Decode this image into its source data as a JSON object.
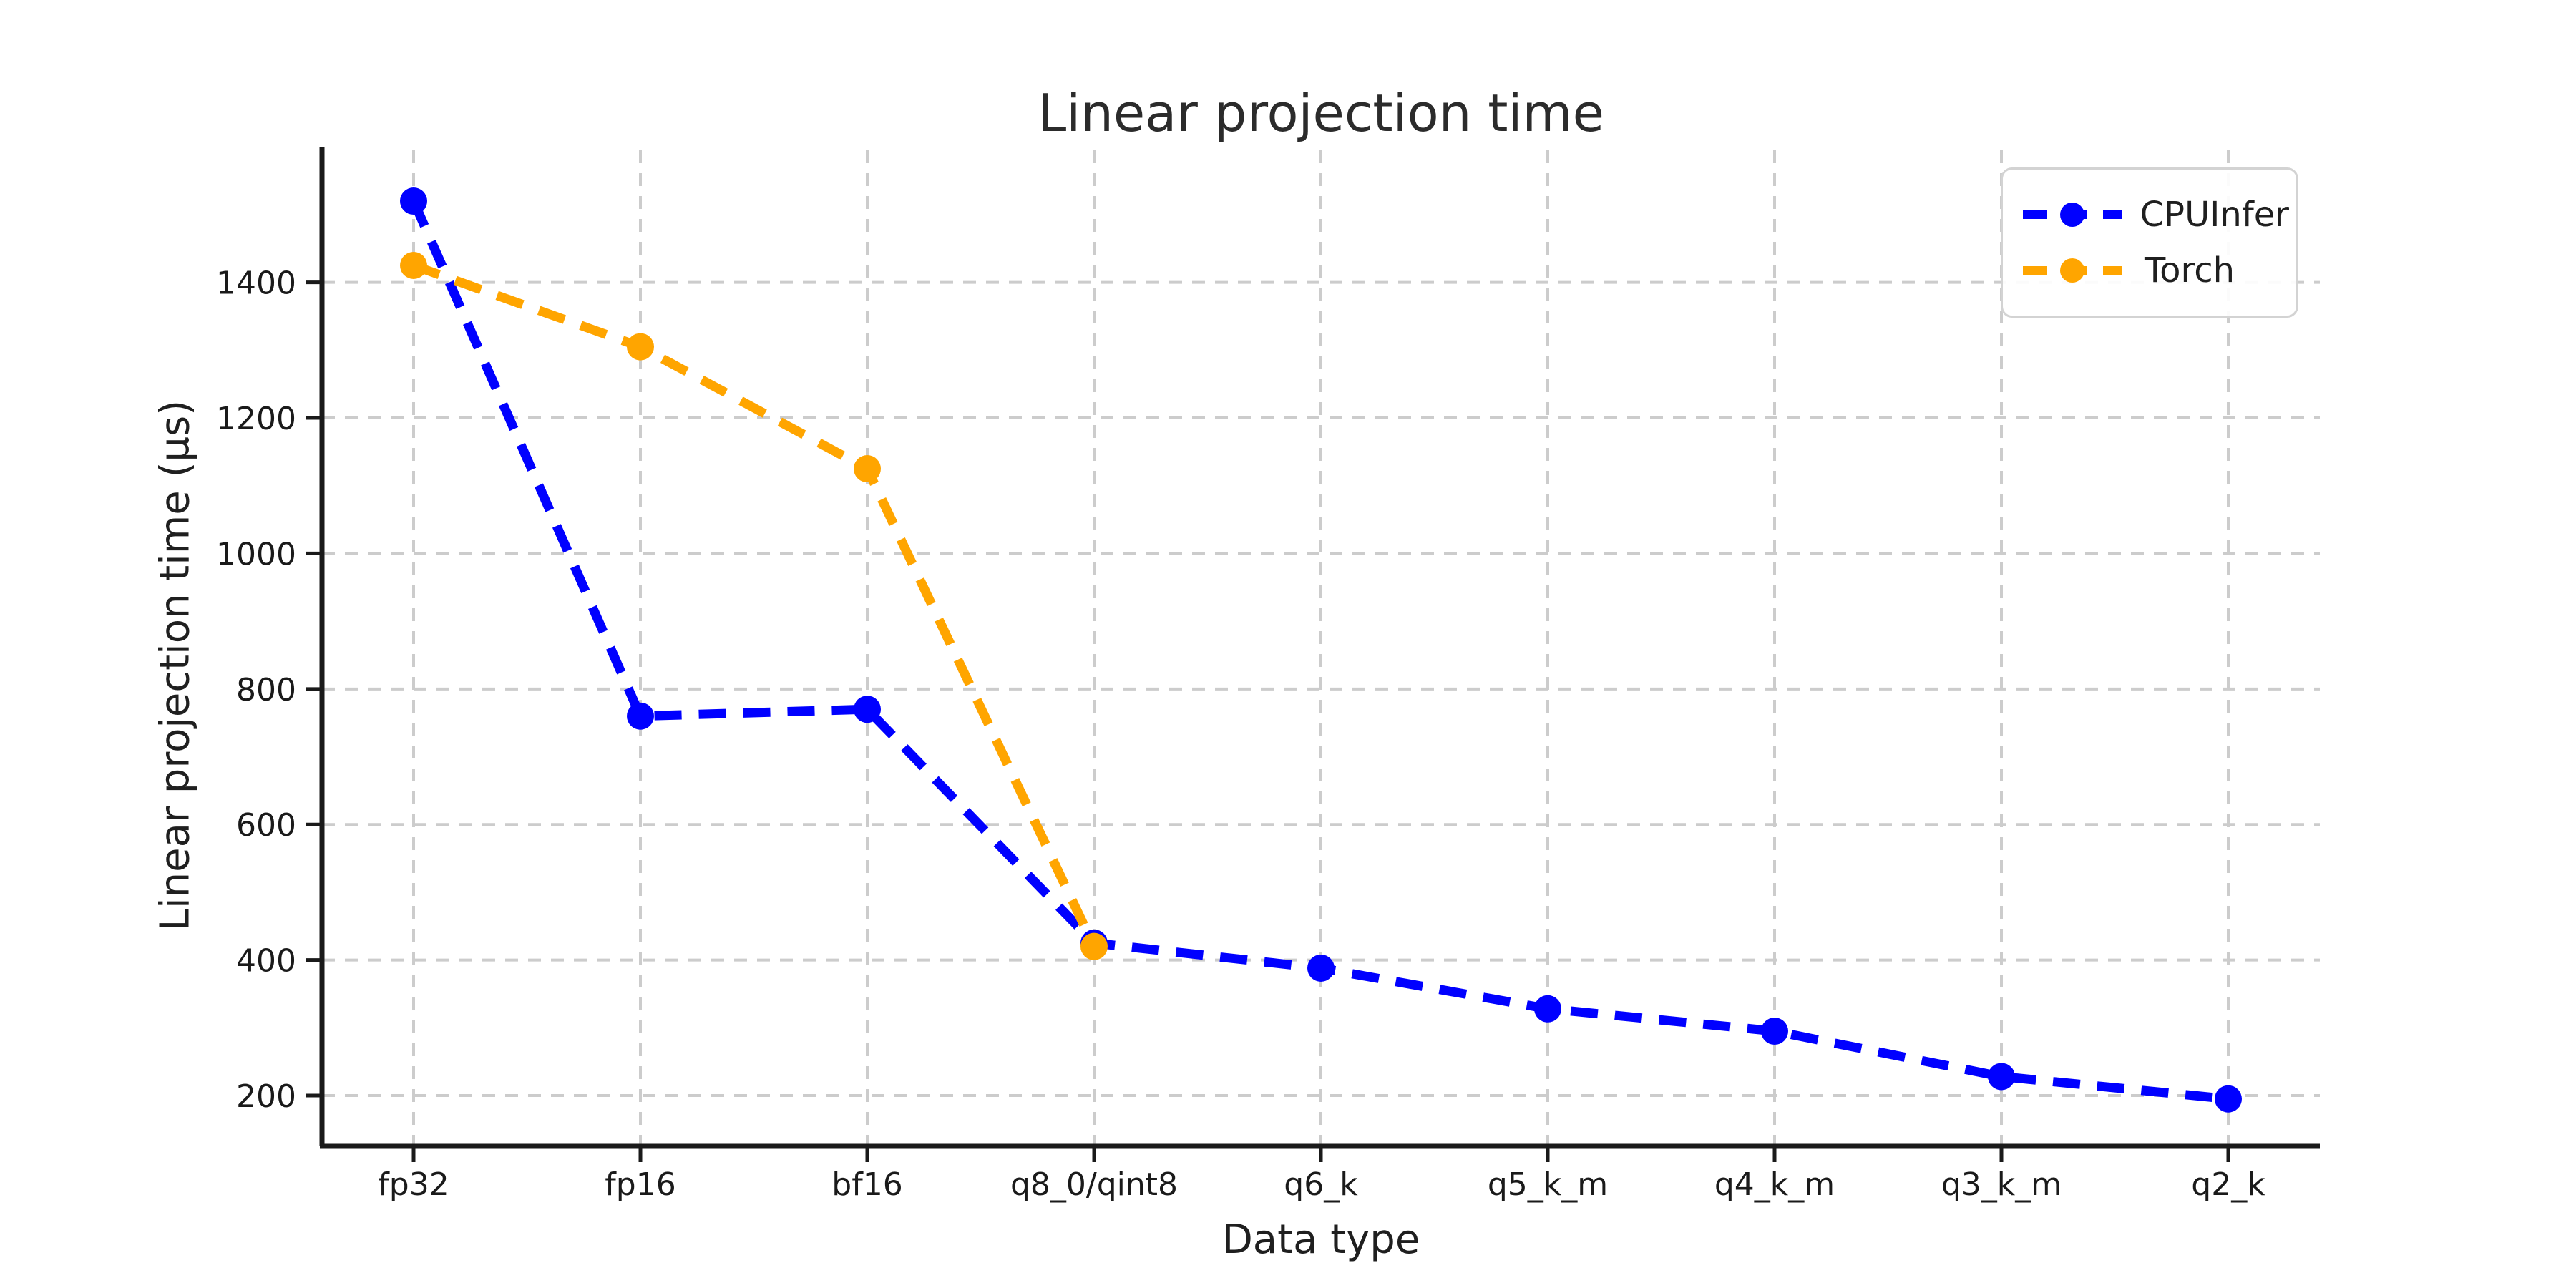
{
  "window": {
    "background": "#ffffff"
  },
  "chart_data": {
    "type": "line",
    "title": "Linear projection time",
    "xlabel": "Data type",
    "ylabel": "Linear projection time (µs)",
    "categories": [
      "fp32",
      "fp16",
      "bf16",
      "q8_0/qint8",
      "q6_k",
      "q5_k_m",
      "q4_k_m",
      "q3_k_m",
      "q2_k"
    ],
    "series": [
      {
        "name": "CPUInfer",
        "color": "#0000ff",
        "values": [
          1520,
          760,
          770,
          425,
          388,
          328,
          295,
          228,
          195
        ]
      },
      {
        "name": "Torch",
        "color": "#ffa500",
        "values": [
          1425,
          1305,
          1125,
          420,
          null,
          null,
          null,
          null,
          null
        ]
      }
    ],
    "yticks": [
      200,
      400,
      600,
      800,
      1000,
      1200,
      1400
    ],
    "ylim": [
      125,
      1595
    ],
    "grid": true,
    "grid_style": "dashed",
    "line_style": "dashed",
    "marker": "circle",
    "legend_position": "upper right",
    "legend_entries": [
      "CPUInfer",
      "Torch"
    ]
  },
  "style_colors": {
    "grid": "#cccccc",
    "spine": "#1a1a1a",
    "tick_label": "#1a1a1a",
    "text": "#1f1f1f"
  }
}
